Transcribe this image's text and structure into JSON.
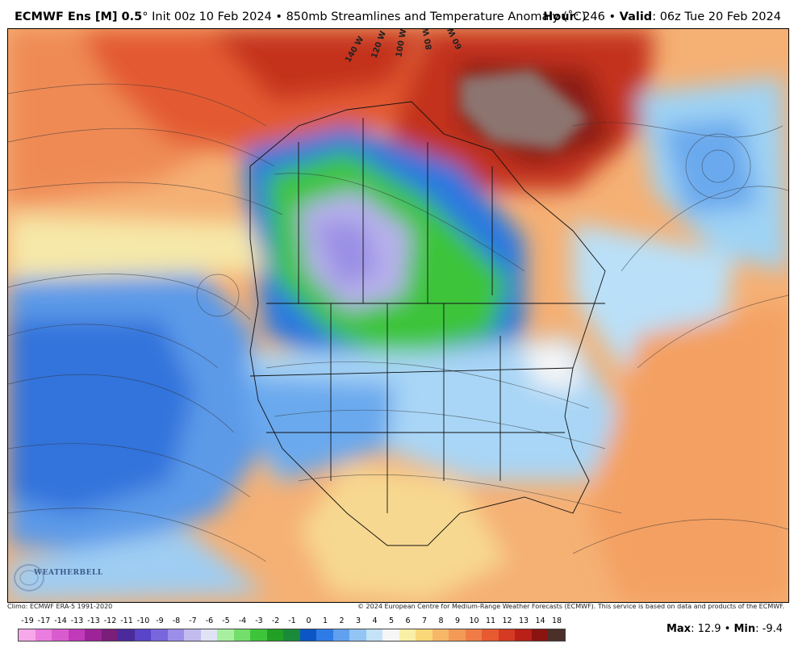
{
  "header": {
    "model": "ECMWF Ens [M] 0.5",
    "degree": "°",
    "init": " Init 00z 10 Feb 2024 • 850mb Streamlines and Temperature Anomaly (˚C)",
    "hour_label": "Hour",
    "hour_value": ": 246 • ",
    "valid_label": "Valid",
    "valid_value": ": 06z Tue 20 Feb 2024"
  },
  "map": {
    "longitude_labels": [
      "140 W",
      "120 W",
      "100 W",
      "80 W",
      "60 W"
    ]
  },
  "logo": {
    "text": "WEATHERBELL"
  },
  "footer": {
    "climo": "Climo: ECMWF ERA-5 1991-2020",
    "copyright": "© 2024 European Centre for Medium-Range Weather Forecasts (ECMWF). This service is based on data and products of the ECMWF."
  },
  "legend": {
    "ticks": [
      "-19",
      "-17",
      "-14",
      "-13",
      "-13",
      "-12",
      "-11",
      "-10",
      "-9",
      "-8",
      "-7",
      "-6",
      "-5",
      "-4",
      "-3",
      "-2",
      "-1",
      "0",
      "1",
      "2",
      "3",
      "4",
      "5",
      "6",
      "7",
      "8",
      "9",
      "10",
      "11",
      "12",
      "13",
      "14",
      "18"
    ],
    "colors": [
      "#f7a8ea",
      "#ea7de0",
      "#d95ccf",
      "#c03aba",
      "#9d2498",
      "#7a1e7a",
      "#4b2a9c",
      "#5a44c8",
      "#7866dc",
      "#9c8ee8",
      "#c2bcef",
      "#dfe3f5",
      "#a8f0a0",
      "#74de6c",
      "#3ec43a",
      "#22a024",
      "#1a8a3a",
      "#0b55c6",
      "#2f7be6",
      "#61a0ee",
      "#92c5f3",
      "#c4e2f8",
      "#f6f6f6",
      "#f9f0a8",
      "#f8d878",
      "#f6b868",
      "#f39a56",
      "#ef7c46",
      "#e85a32",
      "#d53a22",
      "#b82018",
      "#8a1410",
      "#4a3028"
    ],
    "max_label": "Max",
    "max_value": ": 12.9 • ",
    "min_label": "Min",
    "min_value": ": -9.4"
  }
}
